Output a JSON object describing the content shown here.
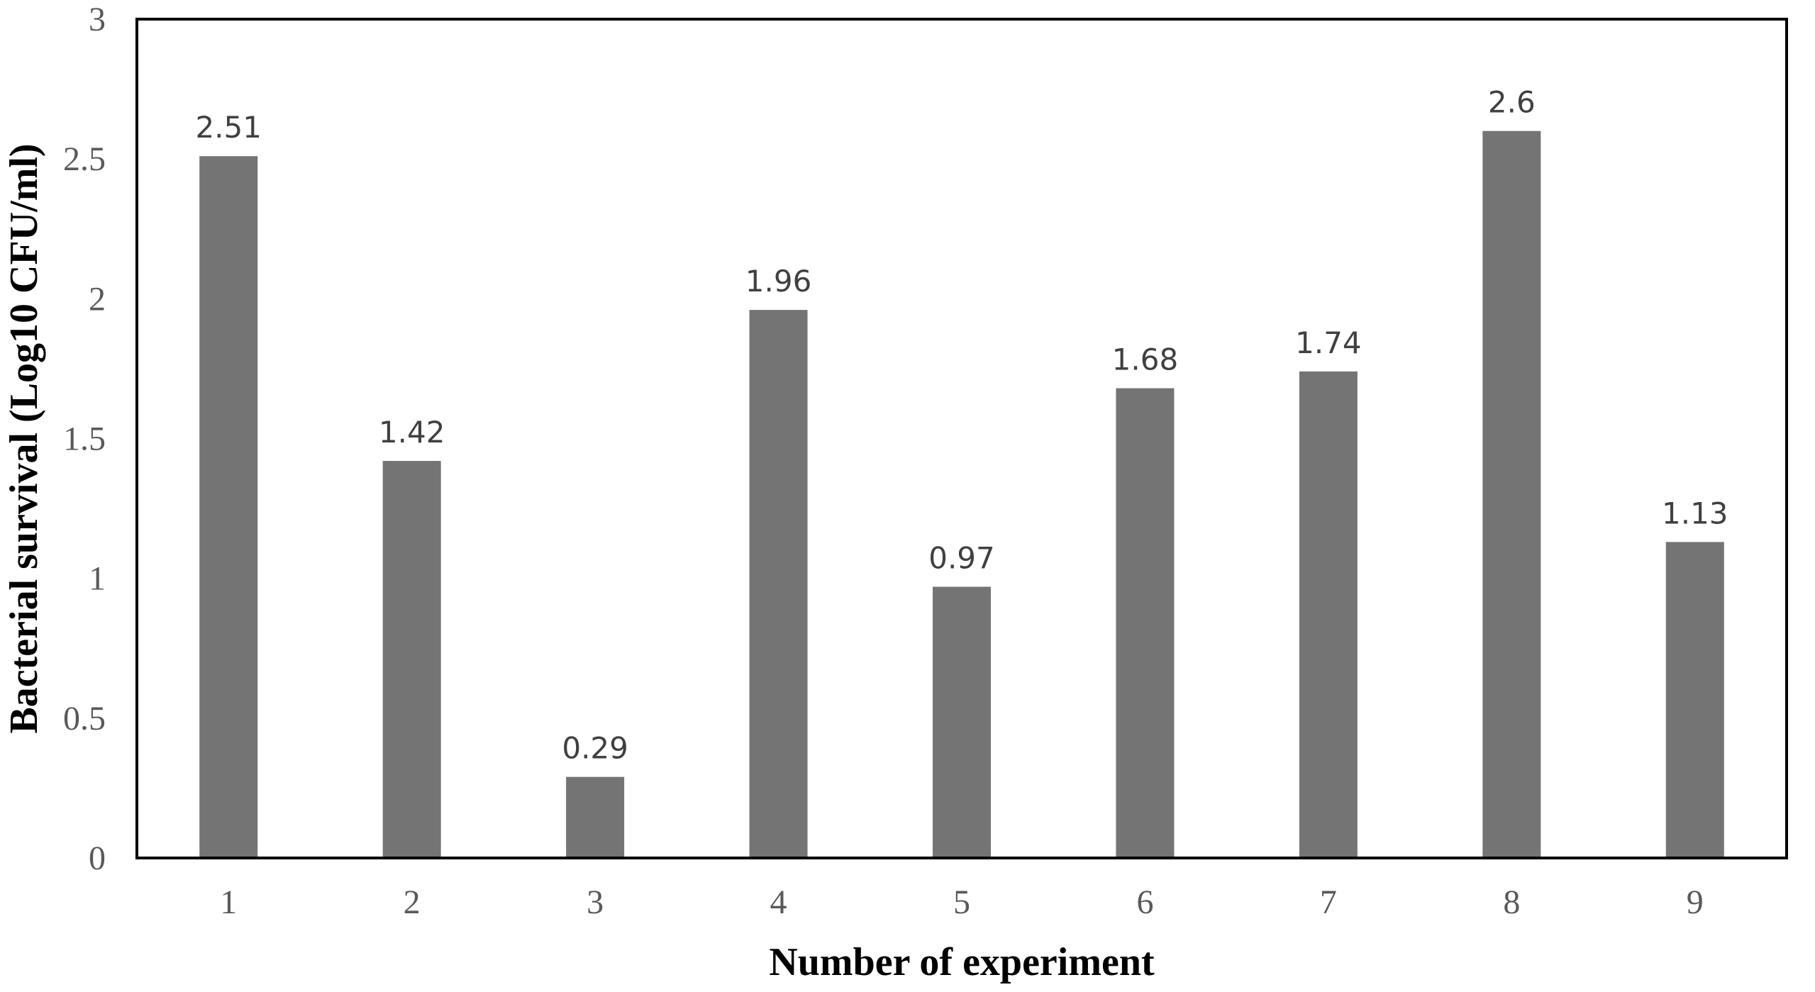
{
  "chart_data": {
    "type": "bar",
    "categories": [
      "1",
      "2",
      "3",
      "4",
      "5",
      "6",
      "7",
      "8",
      "9"
    ],
    "values": [
      2.51,
      1.42,
      0.29,
      1.96,
      0.97,
      1.68,
      1.74,
      2.6,
      1.13
    ],
    "data_labels": [
      "2.51",
      "1.42",
      "0.29",
      "1.96",
      "0.97",
      "1.68",
      "1.74",
      "2.6",
      "1.13"
    ],
    "xlabel": "Number of experiment",
    "ylabel": "Bacterial survival (Log10 CFU/ml)",
    "ylim": [
      0,
      3
    ],
    "yticks": [
      "0",
      "0.5",
      "1",
      "1.5",
      "2",
      "2.5",
      "3"
    ],
    "grid": false,
    "legend": "none",
    "bar_color": "#747474",
    "frame_color": "#000000"
  }
}
